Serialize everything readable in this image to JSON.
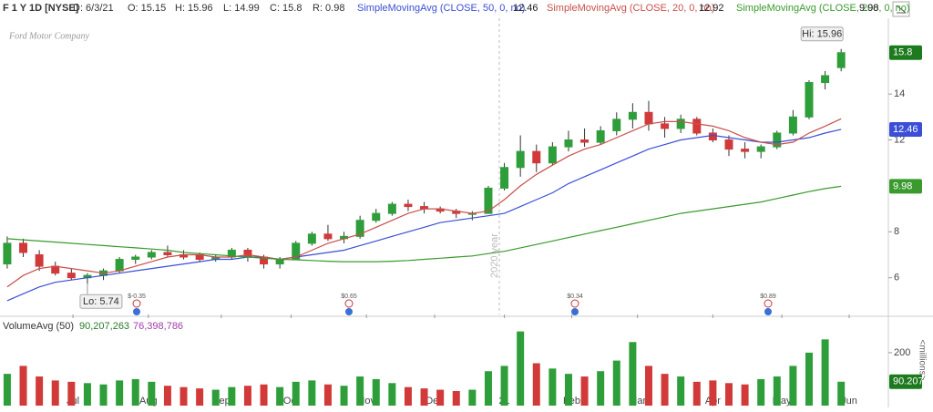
{
  "chart_data": {
    "type": "candlestick",
    "header": {
      "symbol": "F 1 Y 1D [NYSE]",
      "date": "D: 6/3/21",
      "open": "O: 15.15",
      "high": "H: 15.96",
      "low": "L: 14.99",
      "close": "C: 15.8",
      "range": "R: 0.98"
    },
    "x": [
      0,
      1,
      2,
      3,
      4,
      5,
      6,
      7,
      8,
      9,
      10,
      11,
      12,
      13,
      14,
      15,
      16,
      17,
      18,
      19,
      20,
      21,
      22,
      23,
      24,
      25,
      26,
      27,
      28,
      29,
      30,
      31,
      32,
      33,
      34,
      35,
      36,
      37,
      38,
      39,
      40,
      41,
      42,
      43,
      44,
      45,
      46,
      47,
      48,
      49,
      50,
      51,
      52
    ],
    "xlim": [
      -0.45,
      55
    ],
    "xticks": [
      {
        "value": 4.1,
        "label": "Jul"
      },
      {
        "value": 8.8,
        "label": "Aug"
      },
      {
        "value": 13.35,
        "label": "Sep"
      },
      {
        "value": 17.7,
        "label": "Oct"
      },
      {
        "value": 22.4,
        "label": "Nov"
      },
      {
        "value": 26.65,
        "label": "Dec"
      },
      {
        "value": 31.0,
        "label": "21"
      },
      {
        "value": 35.2,
        "label": "Feb"
      },
      {
        "value": 39.3,
        "label": "Mar"
      },
      {
        "value": 44.0,
        "label": "Apr"
      },
      {
        "value": 48.3,
        "label": "May"
      },
      {
        "value": 52.5,
        "label": "Jun"
      }
    ],
    "ylim": [
      4.4,
      17.3
    ],
    "yticks": [
      6,
      8,
      12,
      14
    ],
    "up_color": "#2e9e3a",
    "down_color": "#d23a3a",
    "candles": {
      "open": [
        6.6,
        7.5,
        7.0,
        6.5,
        6.2,
        6.0,
        6.1,
        6.3,
        6.8,
        6.9,
        7.1,
        7.0,
        7.0,
        6.8,
        6.9,
        7.2,
        6.9,
        6.6,
        6.8,
        7.5,
        7.9,
        7.7,
        7.8,
        8.5,
        8.8,
        9.2,
        9.1,
        9.0,
        8.9,
        8.8,
        8.8,
        9.9,
        10.8,
        11.5,
        11.0,
        11.7,
        12.0,
        11.9,
        12.4,
        12.9,
        13.2,
        12.7,
        12.5,
        12.9,
        12.3,
        12.0,
        11.6,
        11.5,
        11.7,
        12.3,
        13.0,
        14.5,
        15.15
      ],
      "high": [
        7.8,
        7.7,
        7.2,
        6.7,
        6.4,
        6.2,
        6.4,
        6.9,
        7.0,
        7.2,
        7.4,
        7.2,
        7.1,
        7.0,
        7.3,
        7.3,
        7.0,
        6.9,
        7.6,
        8.0,
        8.3,
        8.0,
        8.7,
        9.0,
        9.3,
        9.4,
        9.3,
        9.1,
        9.0,
        8.9,
        10.0,
        11.0,
        12.2,
        11.8,
        11.9,
        12.4,
        12.5,
        12.6,
        13.2,
        13.6,
        13.7,
        13.0,
        13.1,
        13.0,
        12.5,
        12.2,
        11.9,
        11.8,
        12.4,
        13.3,
        14.6,
        15.0,
        15.96
      ],
      "low": [
        6.4,
        6.9,
        6.3,
        6.1,
        5.9,
        5.74,
        5.9,
        6.2,
        6.6,
        6.8,
        6.9,
        6.8,
        6.7,
        6.7,
        6.8,
        6.7,
        6.4,
        6.4,
        6.8,
        7.4,
        7.6,
        7.5,
        7.7,
        8.4,
        8.7,
        8.9,
        8.8,
        8.8,
        8.6,
        8.5,
        8.8,
        9.8,
        10.4,
        10.6,
        10.9,
        11.5,
        11.7,
        11.8,
        12.2,
        12.5,
        12.4,
        12.1,
        12.3,
        12.2,
        11.9,
        11.3,
        11.2,
        11.2,
        11.6,
        12.2,
        12.9,
        14.2,
        14.99
      ],
      "close": [
        7.5,
        7.1,
        6.5,
        6.2,
        6.0,
        6.1,
        6.3,
        6.8,
        6.9,
        7.1,
        7.0,
        6.9,
        6.8,
        6.9,
        7.2,
        6.9,
        6.6,
        6.8,
        7.5,
        7.9,
        7.7,
        7.8,
        8.5,
        8.8,
        9.2,
        9.1,
        9.0,
        8.9,
        8.8,
        8.8,
        9.9,
        10.8,
        11.5,
        11.0,
        11.7,
        12.0,
        11.9,
        12.4,
        12.9,
        13.2,
        12.7,
        12.5,
        12.9,
        12.3,
        12.0,
        11.6,
        11.5,
        11.7,
        12.3,
        13.0,
        14.5,
        14.8,
        15.8
      ]
    },
    "series": [
      {
        "name": "SimpleMovingAvg (CLOSE, 50, 0, no)",
        "color": "#3b4fd6",
        "values": [
          5.0,
          5.3,
          5.6,
          5.8,
          5.9,
          6.0,
          6.1,
          6.2,
          6.3,
          6.4,
          6.5,
          6.6,
          6.7,
          6.8,
          6.8,
          6.9,
          6.9,
          6.8,
          6.9,
          7.0,
          7.1,
          7.2,
          7.4,
          7.6,
          7.8,
          8.0,
          8.2,
          8.4,
          8.5,
          8.6,
          8.7,
          8.8,
          9.1,
          9.4,
          9.7,
          10.1,
          10.4,
          10.7,
          11.0,
          11.3,
          11.6,
          11.8,
          12.0,
          12.1,
          12.2,
          12.1,
          12.0,
          11.9,
          11.9,
          12.0,
          12.1,
          12.3,
          12.46
        ]
      },
      {
        "name": "SimpleMovingAvg (CLOSE, 20, 0, no)",
        "color": "#c9504a",
        "values": [
          5.6,
          6.1,
          6.4,
          6.5,
          6.4,
          6.3,
          6.2,
          6.3,
          6.5,
          6.7,
          6.9,
          7.0,
          7.0,
          6.9,
          6.9,
          7.0,
          6.9,
          6.8,
          6.9,
          7.2,
          7.5,
          7.7,
          7.9,
          8.2,
          8.5,
          8.8,
          9.0,
          9.0,
          8.9,
          8.8,
          8.9,
          9.4,
          10.0,
          10.5,
          10.9,
          11.3,
          11.6,
          11.8,
          12.1,
          12.4,
          12.7,
          12.8,
          12.8,
          12.7,
          12.6,
          12.4,
          12.1,
          11.9,
          11.8,
          11.9,
          12.3,
          12.6,
          12.92
        ]
      },
      {
        "name": "SimpleMovingAvg (CLOSE, 200, 0, no)",
        "color": "#3a9a2e",
        "values": [
          7.7,
          7.65,
          7.6,
          7.55,
          7.5,
          7.45,
          7.4,
          7.35,
          7.3,
          7.25,
          7.2,
          7.1,
          7.05,
          7.0,
          6.95,
          6.9,
          6.85,
          6.8,
          6.78,
          6.75,
          6.72,
          6.7,
          6.7,
          6.7,
          6.72,
          6.75,
          6.8,
          6.85,
          6.9,
          6.95,
          7.05,
          7.15,
          7.3,
          7.45,
          7.6,
          7.75,
          7.9,
          8.05,
          8.2,
          8.35,
          8.5,
          8.65,
          8.8,
          8.9,
          9.0,
          9.1,
          9.2,
          9.3,
          9.45,
          9.6,
          9.75,
          9.88,
          9.98
        ]
      }
    ],
    "annotations": {
      "hi": "Hi: 15.96",
      "lo": "Lo: 5.74",
      "year": "2020 year",
      "logo": "Ford Motor Company",
      "earnings": [
        "$-0.35",
        "$0.65",
        "$0.34",
        "$0.89"
      ]
    },
    "volume": {
      "title": "VolumeAvg (50)",
      "last": "90,207,263",
      "average": "76,398,786",
      "unit": "<millions>",
      "ylim": [
        0,
        320
      ],
      "yticks": [
        200
      ],
      "values": [
        120,
        150,
        110,
        95,
        90,
        85,
        80,
        95,
        100,
        90,
        75,
        70,
        65,
        60,
        70,
        75,
        80,
        70,
        90,
        95,
        80,
        75,
        110,
        100,
        85,
        70,
        65,
        60,
        55,
        60,
        130,
        150,
        280,
        160,
        140,
        120,
        110,
        130,
        170,
        240,
        150,
        120,
        110,
        90,
        95,
        85,
        80,
        100,
        110,
        150,
        200,
        250,
        90.2073
      ]
    }
  }
}
